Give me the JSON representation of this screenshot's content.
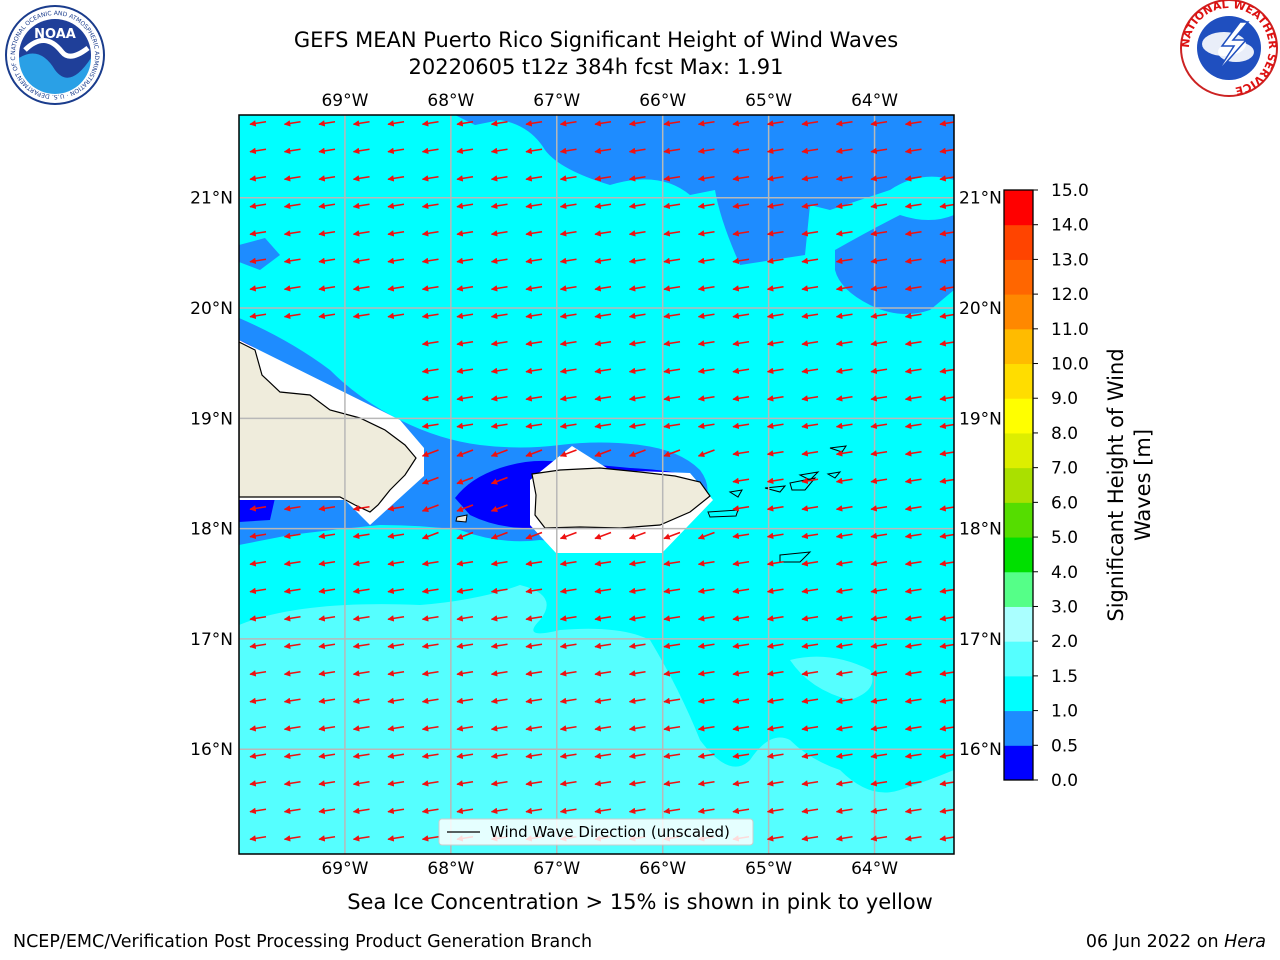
{
  "title": {
    "line1": "GEFS MEAN Puerto Rico Significant Height of Wind Waves",
    "line2": "20220605 t12z 384h fcst   Max: 1.91"
  },
  "subtitle": "Sea Ice Concentration > 15% is shown in pink to yellow",
  "footer": {
    "left": "NCEP/EMC/Verification Post Processing Product Generation Branch",
    "right_date": "06 Jun 2022 on",
    "right_host": "Hera"
  },
  "logos": {
    "noaa": {
      "text": "NOAA",
      "ring_text": "NATIONAL OCEANIC AND ATMOSPHERIC ADMINISTRATION · U.S. DEPARTMENT OF COMMERCE"
    },
    "nws": {
      "ring_text": "NATIONAL WEATHER SERVICE"
    }
  },
  "map": {
    "lon_labels": [
      "69°W",
      "68°W",
      "67°W",
      "66°W",
      "65°W",
      "64°W"
    ],
    "lat_labels": [
      "21°N",
      "20°N",
      "19°N",
      "18°N",
      "17°N",
      "16°N"
    ],
    "lon_values": [
      -69,
      -68,
      -67,
      -66,
      -65,
      -64
    ],
    "lat_values": [
      21,
      20,
      19,
      18,
      17,
      16
    ],
    "extent": {
      "lon_min": -70,
      "lon_max": -63.25,
      "lat_min": 15.05,
      "lat_max": 21.75
    },
    "legend_label": "Wind Wave Direction (unscaled)",
    "arrow_color": "#ee1111",
    "land_color": "#efecdc",
    "background_color": "#00ffff"
  },
  "colorbar": {
    "label_line1": "Significant Height of Wind",
    "label_line2": "Waves [m]",
    "tick_labels": [
      "0.0",
      "0.5",
      "1.0",
      "1.5",
      "2.0",
      "3.0",
      "4.0",
      "5.0",
      "6.0",
      "7.0",
      "8.0",
      "9.0",
      "10.0",
      "11.0",
      "12.0",
      "13.0",
      "14.0",
      "15.0"
    ],
    "colors": [
      "#0000ff",
      "#1e8cff",
      "#00ffff",
      "#55ffff",
      "#aaffff",
      "#55ff88",
      "#00e000",
      "#55dd00",
      "#aae000",
      "#ddee00",
      "#ffff00",
      "#ffdd00",
      "#ffbb00",
      "#ff8800",
      "#ff6600",
      "#ff4400",
      "#ff0000"
    ]
  }
}
